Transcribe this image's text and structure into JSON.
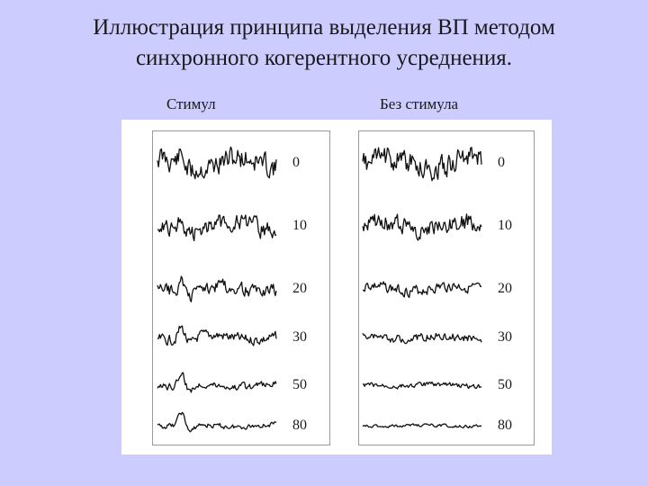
{
  "title": {
    "line1": "Иллюстрация принципа выделения ВП методом",
    "line2": "синхронного когерентного усреднения."
  },
  "columns": {
    "left": "Стимул",
    "right": "Без стимула"
  },
  "rows": [
    {
      "label": "0",
      "amp_stim": 1.0,
      "amp_nostim": 1.0
    },
    {
      "label": "10",
      "amp_stim": 0.75,
      "amp_nostim": 0.8
    },
    {
      "label": "20",
      "amp_stim": 0.55,
      "amp_nostim": 0.45
    },
    {
      "label": "30",
      "amp_stim": 0.45,
      "amp_nostim": 0.35
    },
    {
      "label": "50",
      "amp_stim": 0.3,
      "amp_nostim": 0.2
    },
    {
      "label": "80",
      "amp_stim": 0.22,
      "amp_nostim": 0.12
    }
  ]
}
